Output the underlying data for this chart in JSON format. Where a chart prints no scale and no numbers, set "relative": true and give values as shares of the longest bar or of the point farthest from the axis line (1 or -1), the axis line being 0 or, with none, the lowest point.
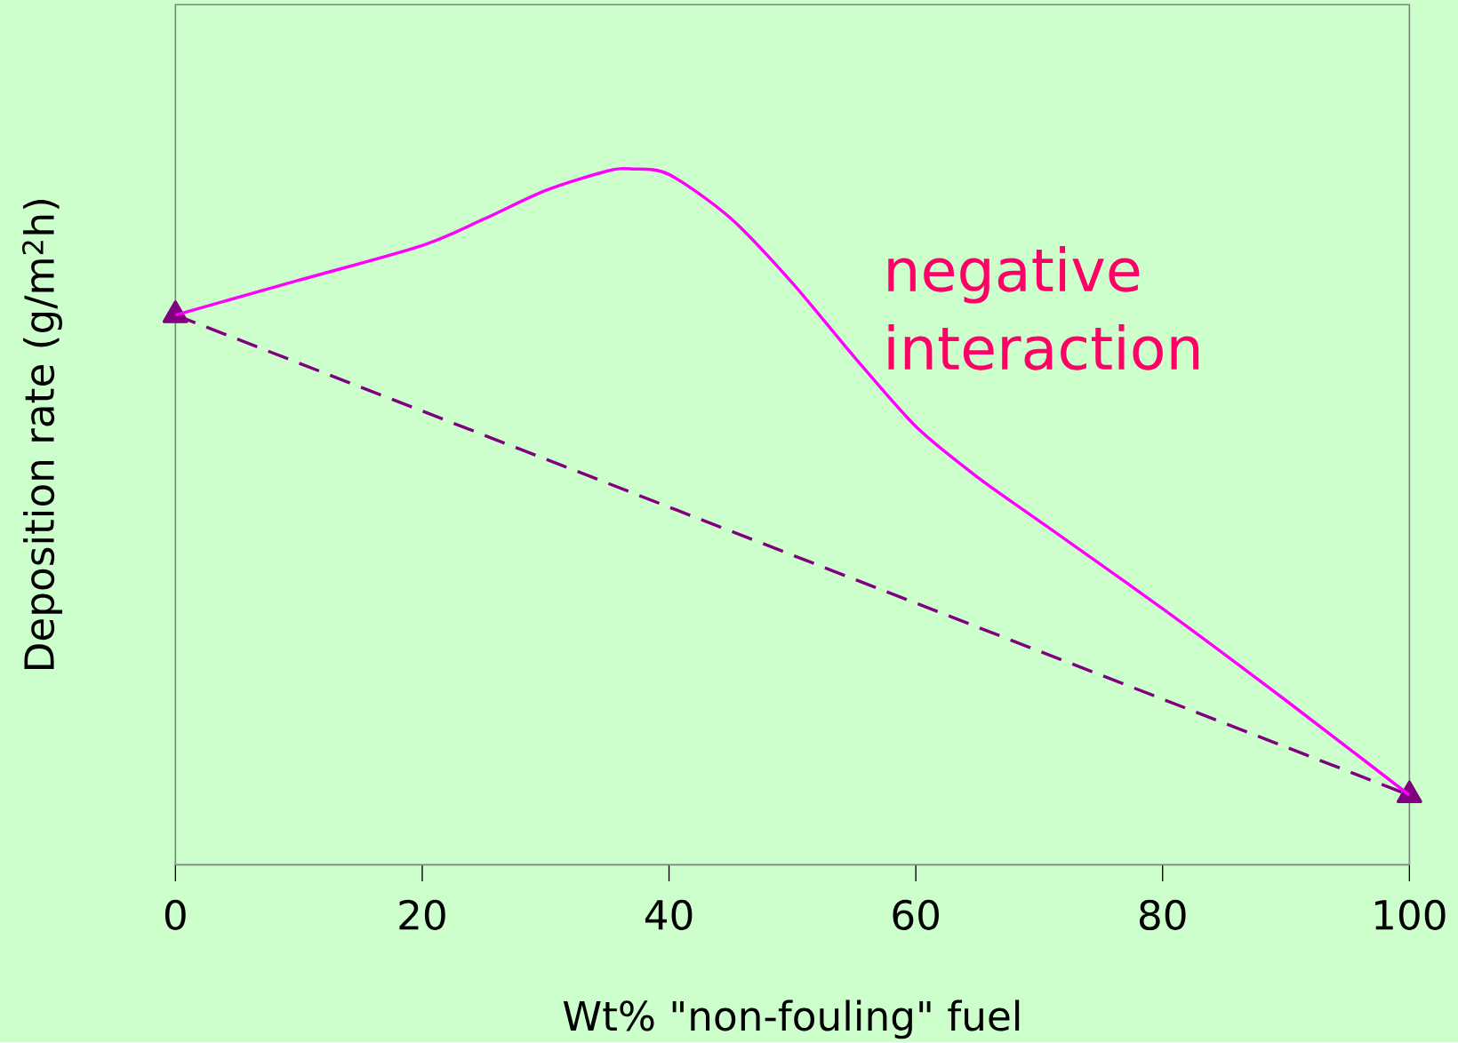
{
  "chart_data": {
    "type": "line",
    "relative": true,
    "xlabel": "Wt% \"non-fouling\" fuel",
    "ylabel": "Deposition rate (g/m$^{2}$h)",
    "annotations": [
      "negative interaction"
    ],
    "xlim": [
      0,
      100
    ],
    "xticks": [
      0,
      20,
      40,
      60,
      80,
      100
    ],
    "series": [
      {
        "color": "#ff00ff",
        "line_style": "solid",
        "marker": "none",
        "x": [
          0,
          10,
          20,
          25,
          30,
          35,
          37,
          40,
          45,
          50,
          55,
          60,
          65,
          70,
          80,
          90,
          100
        ],
        "values": [
          0.79,
          0.84,
          0.89,
          0.928,
          0.969,
          0.997,
          1,
          0.992,
          0.929,
          0.836,
          0.73,
          0.63,
          0.557,
          0.494,
          0.368,
          0.236,
          0.1
        ]
      },
      {
        "color": "#800080",
        "line_style": "dashed",
        "marker": "triangle",
        "x": [
          0,
          100
        ],
        "values": [
          0.79,
          0.1
        ]
      }
    ]
  }
}
